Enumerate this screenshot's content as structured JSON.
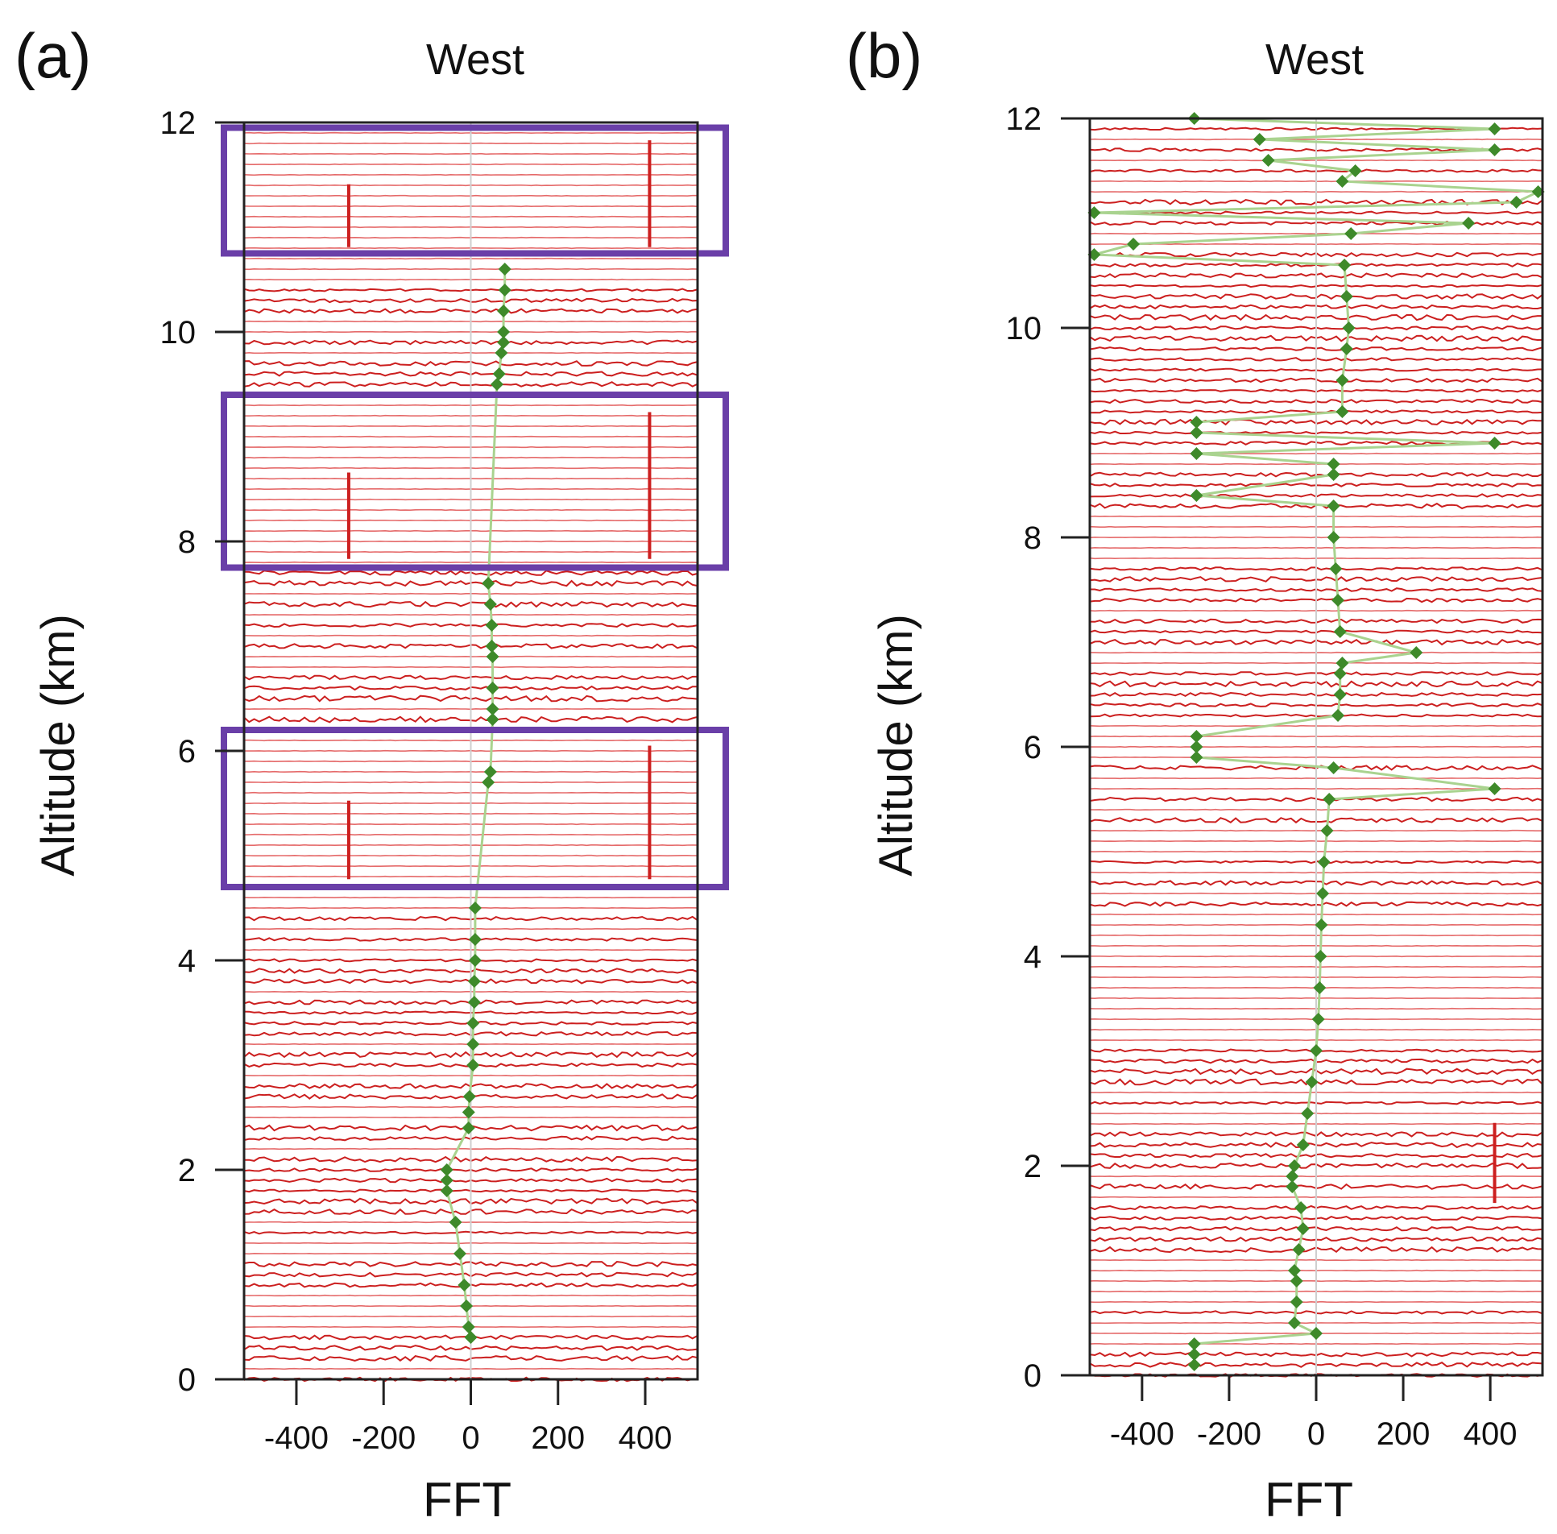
{
  "colors": {
    "trace": "#cc1f1f",
    "trace_light": "#e56a6a",
    "peak_marker": "#3e8a2a",
    "peak_line": "#a9d38f",
    "highlight_box": "#6a3fa8",
    "axis": "#222222",
    "zero_line": "#cfcfcf"
  },
  "chart_data": [
    {
      "type": "line",
      "panel": "(a)",
      "title": "West",
      "xlabel": "FFT",
      "ylabel": "Altitude (km)",
      "xlim": [
        -520,
        520
      ],
      "ylim": [
        0,
        12
      ],
      "xticks": [
        -400,
        -200,
        0,
        200,
        400
      ],
      "xtick_labels": [
        "-400",
        "-200",
        "0",
        "200",
        "400"
      ],
      "yticks": [
        0,
        2,
        4,
        6,
        8,
        10,
        12
      ],
      "ytick_labels": [
        "0",
        "2",
        "4",
        "6",
        "8",
        "10",
        "12"
      ],
      "trace_spacing_km": 0.1,
      "spike_columns": [
        -280,
        410
      ],
      "highlight_ranges_km": [
        [
          10.75,
          11.95
        ],
        [
          7.75,
          9.4
        ],
        [
          4.7,
          6.2
        ]
      ],
      "peaks": [
        {
          "alt": 0.4,
          "fft": 0
        },
        {
          "alt": 0.5,
          "fft": -5
        },
        {
          "alt": 0.7,
          "fft": -10
        },
        {
          "alt": 0.9,
          "fft": -15
        },
        {
          "alt": 1.2,
          "fft": -25
        },
        {
          "alt": 1.5,
          "fft": -35
        },
        {
          "alt": 1.8,
          "fft": -55
        },
        {
          "alt": 1.9,
          "fft": -55
        },
        {
          "alt": 2.0,
          "fft": -55
        },
        {
          "alt": 2.4,
          "fft": -5
        },
        {
          "alt": 2.55,
          "fft": -5
        },
        {
          "alt": 2.7,
          "fft": -3
        },
        {
          "alt": 3.0,
          "fft": 5
        },
        {
          "alt": 3.2,
          "fft": 5
        },
        {
          "alt": 3.4,
          "fft": 5
        },
        {
          "alt": 3.6,
          "fft": 8
        },
        {
          "alt": 3.8,
          "fft": 8
        },
        {
          "alt": 4.0,
          "fft": 10
        },
        {
          "alt": 4.2,
          "fft": 10
        },
        {
          "alt": 4.5,
          "fft": 10
        },
        {
          "alt": 5.7,
          "fft": 40
        },
        {
          "alt": 5.8,
          "fft": 45
        },
        {
          "alt": 6.3,
          "fft": 50
        },
        {
          "alt": 6.4,
          "fft": 50
        },
        {
          "alt": 6.6,
          "fft": 50
        },
        {
          "alt": 6.9,
          "fft": 50
        },
        {
          "alt": 7.0,
          "fft": 48
        },
        {
          "alt": 7.2,
          "fft": 48
        },
        {
          "alt": 7.4,
          "fft": 45
        },
        {
          "alt": 7.6,
          "fft": 40
        },
        {
          "alt": 9.5,
          "fft": 60
        },
        {
          "alt": 9.6,
          "fft": 65
        },
        {
          "alt": 9.8,
          "fft": 70
        },
        {
          "alt": 9.9,
          "fft": 75
        },
        {
          "alt": 10.0,
          "fft": 75
        },
        {
          "alt": 10.2,
          "fft": 75
        },
        {
          "alt": 10.4,
          "fft": 78
        },
        {
          "alt": 10.6,
          "fft": 78
        }
      ]
    },
    {
      "type": "line",
      "panel": "(b)",
      "title": "West",
      "xlabel": "FFT",
      "ylabel": "Altitude (km)",
      "xlim": [
        -520,
        520
      ],
      "ylim": [
        0,
        12
      ],
      "xticks": [
        -400,
        -200,
        0,
        200,
        400
      ],
      "xtick_labels": [
        "-400",
        "-200",
        "0",
        "200",
        "400"
      ],
      "yticks": [
        0,
        2,
        4,
        6,
        8,
        10,
        12
      ],
      "ytick_labels": [
        "0",
        "2",
        "4",
        "6",
        "8",
        "10",
        "12"
      ],
      "trace_spacing_km": 0.1,
      "spike_columns": [
        410
      ],
      "highlight_ranges_km": [],
      "peaks": [
        {
          "alt": 0.1,
          "fft": -280
        },
        {
          "alt": 0.2,
          "fft": -280
        },
        {
          "alt": 0.3,
          "fft": -280
        },
        {
          "alt": 0.4,
          "fft": 0
        },
        {
          "alt": 0.5,
          "fft": -50
        },
        {
          "alt": 0.7,
          "fft": -45
        },
        {
          "alt": 0.9,
          "fft": -45
        },
        {
          "alt": 1.0,
          "fft": -50
        },
        {
          "alt": 1.2,
          "fft": -40
        },
        {
          "alt": 1.4,
          "fft": -30
        },
        {
          "alt": 1.6,
          "fft": -35
        },
        {
          "alt": 1.8,
          "fft": -55
        },
        {
          "alt": 1.9,
          "fft": -55
        },
        {
          "alt": 2.0,
          "fft": -50
        },
        {
          "alt": 2.2,
          "fft": -30
        },
        {
          "alt": 2.5,
          "fft": -20
        },
        {
          "alt": 2.8,
          "fft": -10
        },
        {
          "alt": 3.1,
          "fft": 0
        },
        {
          "alt": 3.4,
          "fft": 5
        },
        {
          "alt": 3.7,
          "fft": 8
        },
        {
          "alt": 4.0,
          "fft": 10
        },
        {
          "alt": 4.3,
          "fft": 12
        },
        {
          "alt": 4.6,
          "fft": 15
        },
        {
          "alt": 4.9,
          "fft": 18
        },
        {
          "alt": 5.2,
          "fft": 25
        },
        {
          "alt": 5.5,
          "fft": 30
        },
        {
          "alt": 5.6,
          "fft": 410
        },
        {
          "alt": 5.8,
          "fft": 40
        },
        {
          "alt": 5.9,
          "fft": -275
        },
        {
          "alt": 6.0,
          "fft": -275
        },
        {
          "alt": 6.1,
          "fft": -275
        },
        {
          "alt": 6.3,
          "fft": 50
        },
        {
          "alt": 6.5,
          "fft": 55
        },
        {
          "alt": 6.7,
          "fft": 55
        },
        {
          "alt": 6.8,
          "fft": 60
        },
        {
          "alt": 6.9,
          "fft": 230
        },
        {
          "alt": 7.1,
          "fft": 55
        },
        {
          "alt": 7.4,
          "fft": 50
        },
        {
          "alt": 7.7,
          "fft": 45
        },
        {
          "alt": 8.0,
          "fft": 40
        },
        {
          "alt": 8.3,
          "fft": 40
        },
        {
          "alt": 8.4,
          "fft": -275
        },
        {
          "alt": 8.6,
          "fft": 40
        },
        {
          "alt": 8.7,
          "fft": 40
        },
        {
          "alt": 8.8,
          "fft": -275
        },
        {
          "alt": 8.9,
          "fft": 410
        },
        {
          "alt": 9.0,
          "fft": -275
        },
        {
          "alt": 9.1,
          "fft": -275
        },
        {
          "alt": 9.2,
          "fft": 60
        },
        {
          "alt": 9.5,
          "fft": 60
        },
        {
          "alt": 9.8,
          "fft": 70
        },
        {
          "alt": 10.0,
          "fft": 75
        },
        {
          "alt": 10.3,
          "fft": 70
        },
        {
          "alt": 10.6,
          "fft": 65
        },
        {
          "alt": 10.7,
          "fft": -510
        },
        {
          "alt": 10.8,
          "fft": -420
        },
        {
          "alt": 10.9,
          "fft": 80
        },
        {
          "alt": 11.0,
          "fft": 350
        },
        {
          "alt": 11.1,
          "fft": -510
        },
        {
          "alt": 11.2,
          "fft": 460
        },
        {
          "alt": 11.3,
          "fft": 510
        },
        {
          "alt": 11.4,
          "fft": 60
        },
        {
          "alt": 11.5,
          "fft": 90
        },
        {
          "alt": 11.6,
          "fft": -110
        },
        {
          "alt": 11.7,
          "fft": 410
        },
        {
          "alt": 11.8,
          "fft": -130
        },
        {
          "alt": 11.9,
          "fft": 410
        },
        {
          "alt": 12.0,
          "fft": -280
        }
      ]
    }
  ]
}
